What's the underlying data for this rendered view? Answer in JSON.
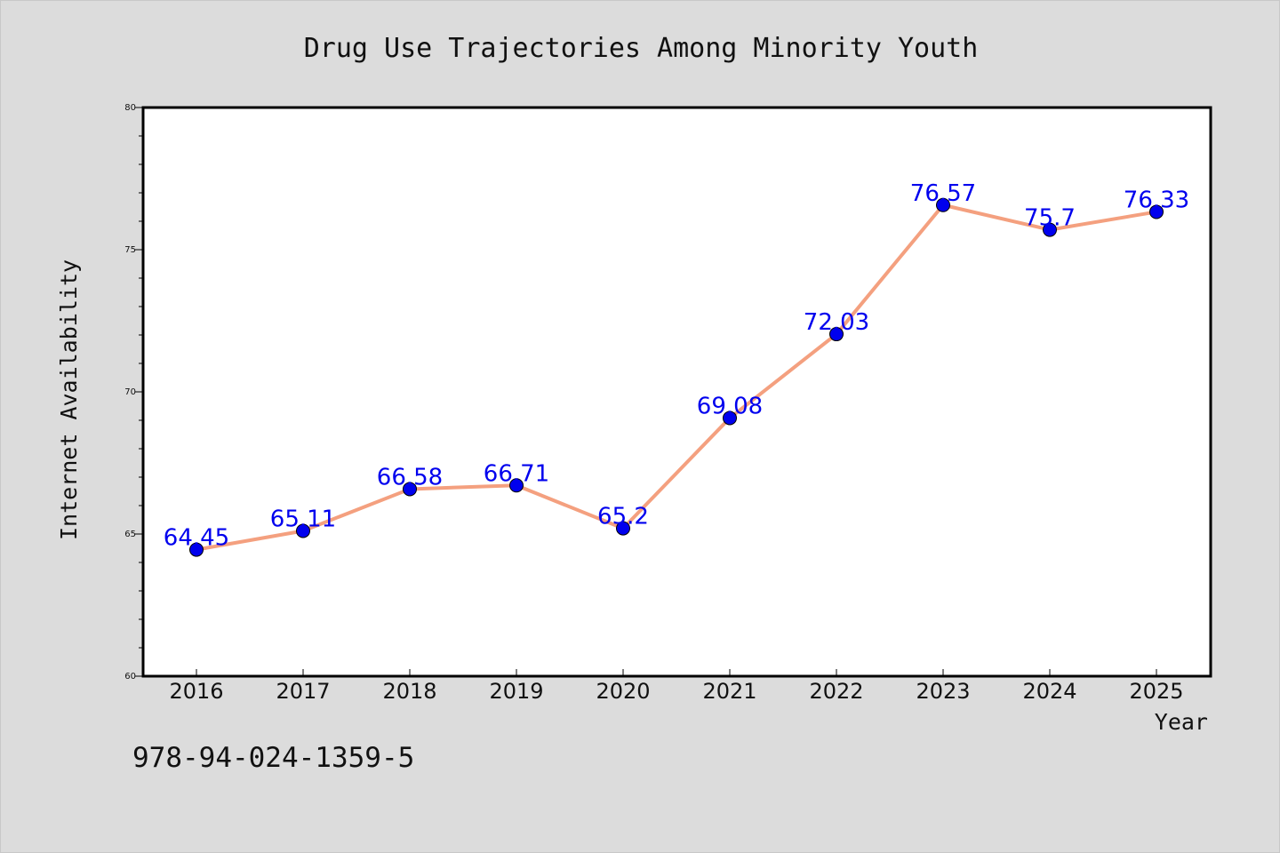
{
  "chart_data": {
    "type": "line",
    "title": "Drug Use Trajectories Among Minority Youth",
    "xlabel": "Year",
    "ylabel": "Internet Availability",
    "x": [
      2016,
      2017,
      2018,
      2019,
      2020,
      2021,
      2022,
      2023,
      2024,
      2025
    ],
    "series": [
      {
        "values": [
          64.45,
          65.11,
          66.58,
          66.71,
          65.2,
          69.08,
          72.03,
          76.57,
          75.7,
          76.33
        ],
        "data_labels": [
          "64.45",
          "65.11",
          "66.58",
          "66.71",
          "65.2",
          "69.08",
          "72.03",
          "76.57",
          "75.7",
          "76.33"
        ],
        "line_color": "#f4a07f",
        "marker_color": "#0000ee",
        "label_color": "#0000ee"
      }
    ],
    "ylim": [
      60,
      80
    ],
    "yticks": [
      60,
      65,
      70,
      75,
      80
    ],
    "grid": false,
    "legend": "none"
  },
  "footer": {
    "code": "978-94-024-1359-5"
  },
  "colors": {
    "background": "#dcdcdc",
    "plot_background": "#ffffff",
    "axis": "#000000"
  }
}
